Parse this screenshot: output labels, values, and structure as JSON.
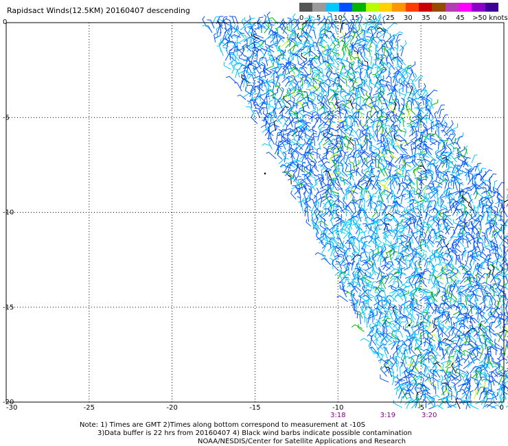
{
  "title": "Rapidsact Winds(12.5KM) 20160407 descending",
  "legend": {
    "colors": [
      "#555555",
      "#9a9a9a",
      "#00c8ff",
      "#0050ff",
      "#00b400",
      "#b4ff00",
      "#ffd200",
      "#ff9600",
      "#ff3c00",
      "#c80000",
      "#964b00",
      "#b43cb4",
      "#ff00ff",
      "#8c00c8",
      "#3c0096"
    ],
    "ticks": [
      "0",
      "5",
      "10",
      "15",
      "20",
      "25",
      "30",
      "35",
      "40",
      "45",
      ">50 knots"
    ]
  },
  "map": {
    "x_ticks": [
      "-30",
      "-25",
      "-20",
      "-15",
      "-10",
      "-5",
      "0"
    ],
    "y_ticks": [
      "0",
      "-5",
      "-10",
      "-15",
      "-20"
    ],
    "lon_range": [
      -30,
      0
    ],
    "lat_range": [
      -20,
      0
    ],
    "time_labels": [
      {
        "text": "3:18",
        "lon": -10
      },
      {
        "text": "3:19",
        "lon": -7
      },
      {
        "text": "3:20",
        "lon": -4.5
      }
    ],
    "colors": {
      "cyan": "#00c8ff",
      "blue": "#0050ff",
      "green": "#00b400",
      "yellow": "#c8ff00",
      "black": "#000000"
    }
  },
  "notes": {
    "line1": "Note: 1) Times are GMT 2)Times along bottom correspond to measurement at -10S",
    "line2": "3)Data buffer is 22 hrs from 20160407 4) Black wind barbs indicate possible contamination",
    "line3": "NOAA/NESDIS/Center for Satellite Applications and Research"
  }
}
